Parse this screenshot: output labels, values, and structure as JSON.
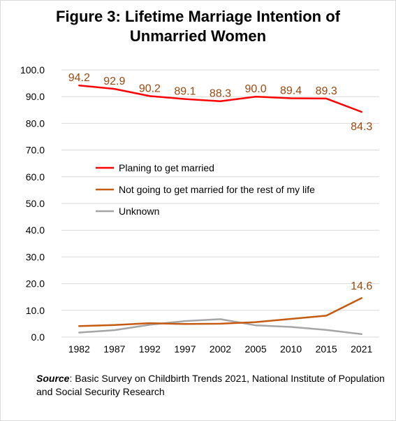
{
  "title": {
    "line1": "Figure 3: Lifetime Marriage Intention of",
    "line2": "Unmarried Women"
  },
  "source": {
    "label": "Source",
    "text": ": Basic Survey on Childbirth Trends 2021, National Institute of Population and Social Security Research"
  },
  "chart_data": {
    "type": "line",
    "categories": [
      "1982",
      "1987",
      "1992",
      "1997",
      "2002",
      "2005",
      "2010",
      "2015",
      "2021"
    ],
    "ylim": [
      0,
      100
    ],
    "yticks": [
      "0.0",
      "10.0",
      "20.0",
      "30.0",
      "40.0",
      "50.0",
      "60.0",
      "70.0",
      "80.0",
      "90.0",
      "100.0"
    ],
    "grid": true,
    "legend_position": "center-left",
    "series": [
      {
        "name": "Planing to get married",
        "color": "#ff0000",
        "values": [
          94.2,
          92.9,
          90.2,
          89.1,
          88.3,
          90.0,
          89.4,
          89.3,
          84.3
        ],
        "labels": [
          "94.2",
          "92.9",
          "90.2",
          "89.1",
          "88.3",
          "90.0",
          "89.4",
          "89.3",
          "84.3"
        ]
      },
      {
        "name": "Not going to get married for the rest of my life",
        "color": "#c55a11",
        "values": [
          4.1,
          4.5,
          5.2,
          4.9,
          5.0,
          5.6,
          6.8,
          8.0,
          14.6
        ],
        "labels": [
          "",
          "",
          "",
          "",
          "",
          "",
          "",
          "",
          "14.6"
        ]
      },
      {
        "name": "Unknown",
        "color": "#a5a5a5",
        "values": [
          1.7,
          2.6,
          4.6,
          6.0,
          6.7,
          4.4,
          3.8,
          2.7,
          1.1
        ],
        "labels": [
          "",
          "",
          "",
          "",
          "",
          "",
          "",
          "",
          ""
        ]
      }
    ],
    "label_color": "#9e480e"
  }
}
